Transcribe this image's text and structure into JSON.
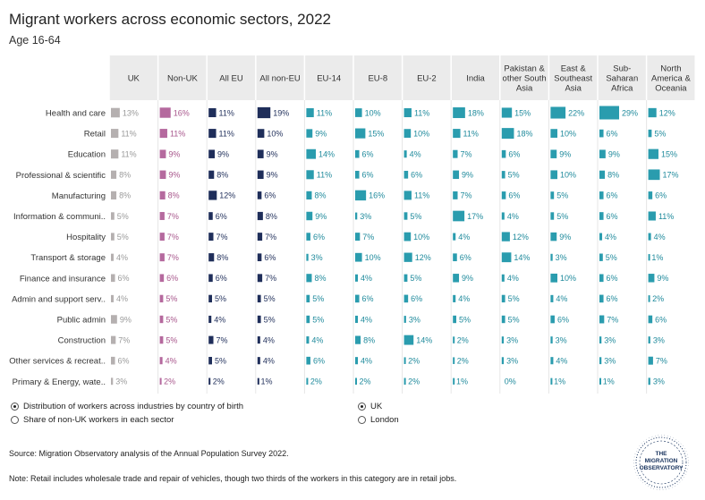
{
  "header": {
    "title": "Migrant workers across economic sectors, 2022",
    "subtitle": "Age 16-64"
  },
  "chart_data": {
    "type": "table",
    "title": "Migrant workers across economic sectors, 2022",
    "subtitle": "Age 16-64",
    "unit": "%",
    "columns": [
      {
        "name": "UK",
        "label": "UK",
        "color": "#b5b0b0"
      },
      {
        "name": "Non-UK",
        "label": "Non-UK",
        "color": "#b5699e"
      },
      {
        "name": "All EU",
        "label": "All EU",
        "color": "#1f2e5a"
      },
      {
        "name": "All non-EU",
        "label": "All non-EU",
        "color": "#1f2e5a"
      },
      {
        "name": "EU-14",
        "label": "EU-14",
        "color": "#2a9cae"
      },
      {
        "name": "EU-8",
        "label": "EU-8",
        "color": "#2a9cae"
      },
      {
        "name": "EU-2",
        "label": "EU-2",
        "color": "#2a9cae"
      },
      {
        "name": "India",
        "label": "India",
        "color": "#2a9cae"
      },
      {
        "name": "Pakistan & other South Asia",
        "label": "Pakistan &|other South|Asia",
        "color": "#2a9cae"
      },
      {
        "name": "East & Southeast Asia",
        "label": "East &|Southeast|Asia",
        "color": "#2a9cae"
      },
      {
        "name": "Sub-Saharan Africa",
        "label": "Sub-|Saharan|Africa",
        "color": "#2a9cae"
      },
      {
        "name": "North America & Oceania",
        "label": "North|America &|Oceania",
        "color": "#2a9cae"
      }
    ],
    "rows": [
      {
        "label": "Health and care",
        "values": [
          13,
          16,
          11,
          19,
          11,
          10,
          11,
          18,
          15,
          22,
          29,
          12
        ]
      },
      {
        "label": "Retail",
        "values": [
          11,
          11,
          11,
          10,
          9,
          15,
          10,
          11,
          18,
          10,
          6,
          5
        ]
      },
      {
        "label": "Education",
        "values": [
          11,
          9,
          9,
          9,
          14,
          6,
          4,
          7,
          6,
          9,
          9,
          15
        ]
      },
      {
        "label": "Professional & scientific",
        "values": [
          8,
          9,
          8,
          9,
          11,
          6,
          6,
          9,
          5,
          10,
          8,
          17
        ]
      },
      {
        "label": "Manufacturing",
        "values": [
          8,
          8,
          12,
          6,
          8,
          16,
          11,
          7,
          6,
          5,
          6,
          6
        ]
      },
      {
        "label": "Information & communi..",
        "values": [
          5,
          7,
          6,
          8,
          9,
          3,
          5,
          17,
          4,
          5,
          6,
          11
        ]
      },
      {
        "label": "Hospitality",
        "values": [
          5,
          7,
          7,
          7,
          6,
          7,
          10,
          4,
          12,
          9,
          4,
          4
        ]
      },
      {
        "label": "Transport & storage",
        "values": [
          4,
          7,
          8,
          6,
          3,
          10,
          12,
          6,
          14,
          3,
          5,
          1
        ]
      },
      {
        "label": "Finance and insurance",
        "values": [
          6,
          6,
          6,
          7,
          8,
          4,
          5,
          9,
          4,
          10,
          6,
          9
        ]
      },
      {
        "label": "Admin and support serv..",
        "values": [
          4,
          5,
          5,
          5,
          5,
          6,
          6,
          4,
          5,
          4,
          6,
          2
        ]
      },
      {
        "label": "Public admin",
        "values": [
          9,
          5,
          4,
          5,
          5,
          4,
          3,
          5,
          5,
          6,
          7,
          6
        ]
      },
      {
        "label": "Construction",
        "values": [
          7,
          5,
          7,
          4,
          4,
          8,
          14,
          2,
          3,
          3,
          3,
          3
        ]
      },
      {
        "label": "Other services & recreat..",
        "values": [
          6,
          4,
          5,
          4,
          6,
          4,
          2,
          2,
          3,
          4,
          3,
          7
        ]
      },
      {
        "label": "Primary & Energy, wate..",
        "values": [
          3,
          2,
          2,
          1,
          2,
          2,
          2,
          1,
          0,
          1,
          1,
          3
        ]
      }
    ],
    "scale_max": 29,
    "header_bg": "#ebebeb",
    "label_color_uk": "#9a9a9a",
    "label_color_nonuk": "#a8578c",
    "label_color_group": "#1f2e5a",
    "label_color_country": "#1f8a9c"
  },
  "controls": {
    "metric_options": [
      {
        "label": "Distribution of workers across industries by country of birth",
        "selected": true
      },
      {
        "label": "Share of non-UK workers in each sector",
        "selected": false
      }
    ],
    "area_options": [
      {
        "label": "UK",
        "selected": true
      },
      {
        "label": "London",
        "selected": false
      }
    ]
  },
  "footer": {
    "source": "Source: Migration Observatory analysis of the Annual Population Survey 2022.",
    "note": "Note: Retail includes wholesale trade and repair of vehicles, though two thirds of the workers in this category are in retail jobs.",
    "logo_text": "THE|MIGRATION|OBSERVATORY"
  }
}
